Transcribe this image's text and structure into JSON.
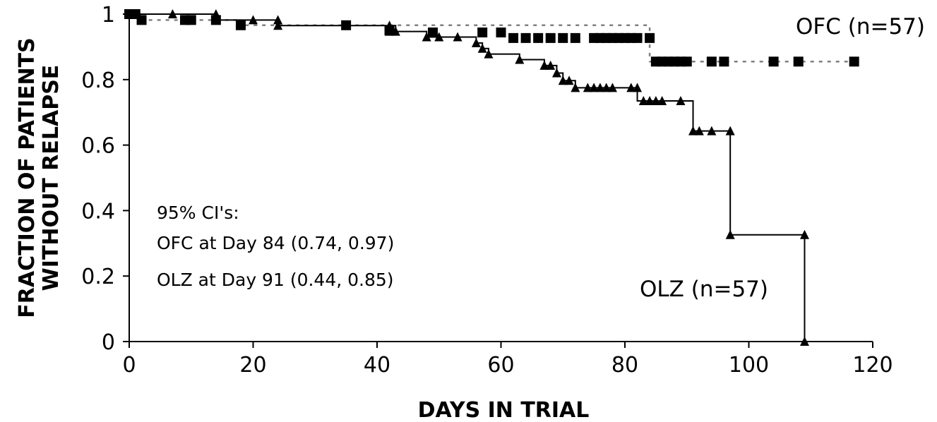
{
  "chart_data": {
    "type": "line",
    "xlabel": "DAYS IN TRIAL",
    "ylabel": [
      "FRACTION OF PATIENTS",
      "WITHOUT RELAPSE"
    ],
    "xlim": [
      0,
      120
    ],
    "ylim": [
      0,
      1
    ],
    "xticks": [
      "0",
      "20",
      "40",
      "60",
      "80",
      "100",
      "120"
    ],
    "yticks": [
      "0",
      "0.2",
      "0.4",
      "0.6",
      "0.8",
      "1"
    ],
    "grid": false,
    "annotations": [
      "95% CI's:",
      "OFC at Day 84 (0.74, 0.97)",
      "OLZ at Day 91 (0.44, 0.85)"
    ],
    "series": [
      {
        "name": "OFC (n=57)",
        "style": "dashed-step",
        "marker": "square",
        "color": "#000000",
        "line_color": "#808080",
        "steps": [
          [
            0,
            1.0
          ],
          [
            2,
            0.982
          ],
          [
            18,
            0.966
          ],
          [
            84,
            0.927
          ],
          [
            84,
            0.855
          ],
          [
            117,
            0.855
          ]
        ],
        "censored": [
          [
            0,
            1.0
          ],
          [
            1,
            1.0
          ],
          [
            2,
            0.982
          ],
          [
            9,
            0.982
          ],
          [
            10,
            0.982
          ],
          [
            14,
            0.982
          ],
          [
            18,
            0.966
          ],
          [
            35,
            0.966
          ],
          [
            42,
            0.95
          ],
          [
            49,
            0.944
          ],
          [
            57,
            0.944
          ],
          [
            60,
            0.944
          ],
          [
            62,
            0.927
          ],
          [
            64,
            0.927
          ],
          [
            66,
            0.927
          ],
          [
            68,
            0.927
          ],
          [
            70,
            0.927
          ],
          [
            72,
            0.927
          ],
          [
            75,
            0.927
          ],
          [
            76,
            0.927
          ],
          [
            77,
            0.927
          ],
          [
            78,
            0.927
          ],
          [
            79,
            0.927
          ],
          [
            80,
            0.927
          ],
          [
            81,
            0.927
          ],
          [
            82,
            0.927
          ],
          [
            84,
            0.927
          ],
          [
            85,
            0.855
          ],
          [
            86,
            0.855
          ],
          [
            87,
            0.855
          ],
          [
            88,
            0.855
          ],
          [
            89,
            0.855
          ],
          [
            90,
            0.855
          ],
          [
            94,
            0.855
          ],
          [
            96,
            0.855
          ],
          [
            104,
            0.855
          ],
          [
            108,
            0.855
          ],
          [
            117,
            0.855
          ]
        ]
      },
      {
        "name": "OLZ (n=57)",
        "style": "solid-step",
        "marker": "triangle",
        "color": "#000000",
        "steps": [
          [
            0,
            1.0
          ],
          [
            14,
            0.982
          ],
          [
            24,
            0.965
          ],
          [
            43,
            0.947
          ],
          [
            48,
            0.93
          ],
          [
            56,
            0.912
          ],
          [
            57,
            0.895
          ],
          [
            58,
            0.878
          ],
          [
            63,
            0.861
          ],
          [
            67,
            0.843
          ],
          [
            69,
            0.82
          ],
          [
            70,
            0.797
          ],
          [
            72,
            0.775
          ],
          [
            82,
            0.735
          ],
          [
            91,
            0.643
          ],
          [
            97,
            0.326
          ],
          [
            109,
            0.0
          ]
        ],
        "censored": [
          [
            1,
            1.0
          ],
          [
            7,
            1.0
          ],
          [
            14,
            1.0
          ],
          [
            20,
            0.982
          ],
          [
            24,
            0.982
          ],
          [
            24,
            0.965
          ],
          [
            42,
            0.965
          ],
          [
            42,
            0.947
          ],
          [
            43,
            0.947
          ],
          [
            48,
            0.93
          ],
          [
            50,
            0.93
          ],
          [
            53,
            0.93
          ],
          [
            56,
            0.912
          ],
          [
            57,
            0.895
          ],
          [
            58,
            0.878
          ],
          [
            63,
            0.861
          ],
          [
            67,
            0.843
          ],
          [
            68,
            0.843
          ],
          [
            69,
            0.82
          ],
          [
            70,
            0.797
          ],
          [
            71,
            0.797
          ],
          [
            72,
            0.775
          ],
          [
            74,
            0.775
          ],
          [
            75,
            0.775
          ],
          [
            76,
            0.775
          ],
          [
            77,
            0.775
          ],
          [
            78,
            0.775
          ],
          [
            81,
            0.775
          ],
          [
            82,
            0.775
          ],
          [
            83,
            0.735
          ],
          [
            84,
            0.735
          ],
          [
            85,
            0.735
          ],
          [
            86,
            0.735
          ],
          [
            89,
            0.735
          ],
          [
            91,
            0.643
          ],
          [
            92,
            0.643
          ],
          [
            94,
            0.643
          ],
          [
            97,
            0.643
          ],
          [
            97,
            0.326
          ],
          [
            109,
            0.326
          ],
          [
            109,
            0.0
          ]
        ]
      }
    ]
  }
}
